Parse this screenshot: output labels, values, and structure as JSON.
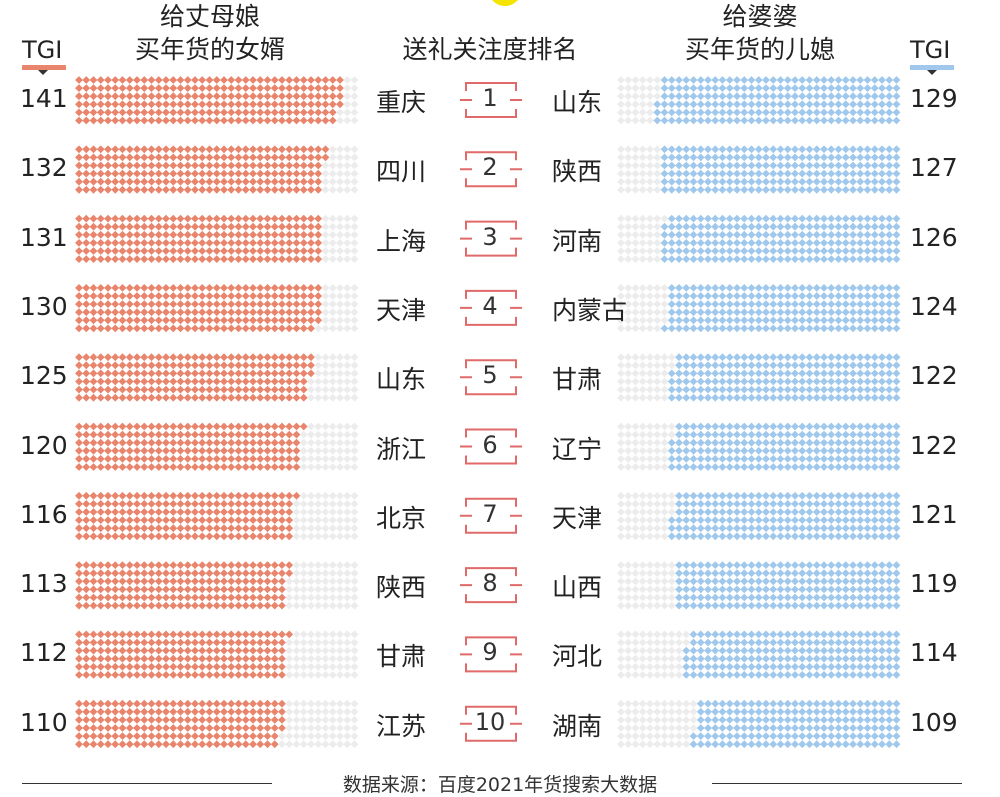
{
  "header": {
    "left_title_1": "给丈母娘",
    "left_title_2": "买年货的女婿",
    "center_title": "送礼关注度排名",
    "right_title_1": "给婆婆",
    "right_title_2": "买年货的儿媳",
    "tgi_left": "TGI",
    "tgi_right": "TGI"
  },
  "footer": "数据来源：百度2021年货搜索大数据",
  "colors": {
    "left": "#e8856c",
    "right": "#9fc8ec",
    "empty": "#ececec",
    "rank": "#e06a6a"
  },
  "chart_data": {
    "type": "bar",
    "title": "送礼关注度排名",
    "ylabel": "TGI",
    "scale_max": 150,
    "ranks": [
      "1",
      "2",
      "3",
      "4",
      "5",
      "6",
      "7",
      "8",
      "9",
      "10"
    ],
    "series": [
      {
        "name": "给丈母娘买年货的女婿",
        "provinces": [
          "重庆",
          "四川",
          "上海",
          "天津",
          "山东",
          "浙江",
          "北京",
          "陕西",
          "甘肃",
          "江苏"
        ],
        "values": [
          141,
          132,
          131,
          130,
          125,
          120,
          116,
          113,
          112,
          110
        ],
        "labels": [
          "141",
          "132",
          "131",
          "130",
          "125",
          "120",
          "116",
          "113",
          "112",
          "110"
        ]
      },
      {
        "name": "给婆婆买年货的儿媳",
        "provinces": [
          "山东",
          "陕西",
          "河南",
          "内蒙古",
          "甘肃",
          "辽宁",
          "天津",
          "山西",
          "河北",
          "湖南"
        ],
        "values": [
          129,
          127,
          126,
          124,
          122,
          122,
          121,
          119,
          114,
          109
        ],
        "labels": [
          "129",
          "127",
          "126",
          "124",
          "122",
          "122",
          "121",
          "119",
          "114",
          "109"
        ]
      }
    ]
  }
}
